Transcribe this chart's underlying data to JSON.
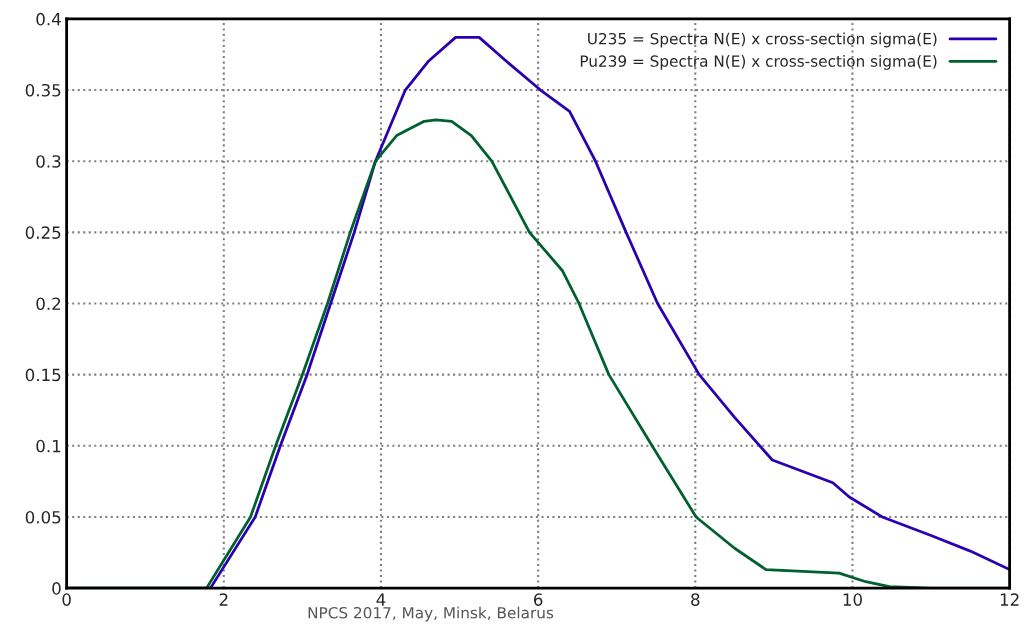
{
  "chart_data": {
    "type": "line",
    "xlim": [
      0,
      12
    ],
    "xticks": [
      0,
      2,
      4,
      6,
      8,
      10,
      12
    ],
    "ylim": [
      0,
      0.4
    ],
    "yticks": [
      0,
      0.05,
      0.1,
      0.15,
      0.2,
      0.25,
      0.3,
      0.35,
      0.4
    ],
    "grid": true,
    "legend": "top right",
    "line_style": "solid",
    "annotations": [
      "NPCS 2017, May, Minsk, Belarus"
    ],
    "series": [
      {
        "name": "U235 = Spectra N(E) x cross-section sigma(E)",
        "color": "#2a00b0",
        "x": [
          0,
          1.83,
          2.4,
          2.72,
          3.06,
          3.36,
          3.66,
          3.93,
          4.31,
          4.6,
          4.95,
          5.25,
          5.6,
          6.03,
          6.4,
          6.73,
          7.12,
          7.52,
          8.05,
          8.5,
          8.98,
          9.75,
          9.96,
          10.38,
          11.0,
          11.5,
          12
        ],
        "values": [
          0,
          0,
          0.05,
          0.1,
          0.15,
          0.2,
          0.25,
          0.3,
          0.35,
          0.37,
          0.387,
          0.387,
          0.37,
          0.35,
          0.335,
          0.3,
          0.25,
          0.2,
          0.15,
          0.12,
          0.09,
          0.074,
          0.064,
          0.05,
          0.037,
          0.026,
          0.013
        ]
      },
      {
        "name": "Pu239 = Spectra N(E) x cross-section sigma(E)",
        "color": "#006030",
        "x": [
          0,
          1.78,
          2.34,
          2.66,
          3.0,
          3.32,
          3.61,
          3.93,
          4.2,
          4.55,
          4.7,
          4.9,
          5.15,
          5.41,
          5.89,
          6.31,
          6.52,
          6.9,
          7.45,
          8.01,
          8.5,
          8.9,
          9.83,
          10.17,
          10.47,
          11,
          12
        ],
        "values": [
          0,
          0,
          0.05,
          0.1,
          0.15,
          0.2,
          0.25,
          0.3,
          0.318,
          0.328,
          0.329,
          0.328,
          0.318,
          0.3,
          0.25,
          0.223,
          0.2,
          0.15,
          0.1,
          0.05,
          0.028,
          0.013,
          0.0105,
          0.0045,
          0.001,
          0,
          0
        ]
      }
    ]
  }
}
